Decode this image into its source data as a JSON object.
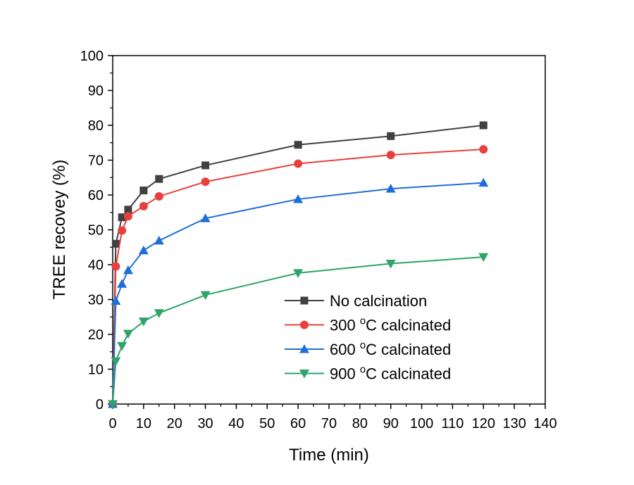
{
  "chart_data": {
    "type": "line",
    "title": "",
    "xlabel": "Time (min)",
    "ylabel": "TREE recovey (%)",
    "xlim": [
      0,
      140
    ],
    "ylim": [
      0,
      100
    ],
    "xticks": [
      0,
      10,
      20,
      30,
      40,
      50,
      60,
      70,
      80,
      90,
      100,
      110,
      120,
      130,
      140
    ],
    "yticks": [
      0,
      10,
      20,
      30,
      40,
      50,
      60,
      70,
      80,
      90,
      100
    ],
    "grid": false,
    "legend_position": "bottom-right",
    "x": [
      0,
      1,
      3,
      5,
      10,
      15,
      30,
      60,
      90,
      120
    ],
    "series": [
      {
        "name": "No calcination",
        "marker": "square",
        "color": "#404040",
        "values": [
          0,
          46,
          53.6,
          55.8,
          61.3,
          64.6,
          68.5,
          74.4,
          76.9,
          80
        ]
      },
      {
        "name": "300 °C calcinated",
        "legend_prefix": "300 ",
        "legend_superscript": "o",
        "legend_suffix": "C calcinated",
        "marker": "circle",
        "color": "#e8403c",
        "values": [
          0,
          39.5,
          49.8,
          53.9,
          56.8,
          59.6,
          63.8,
          69,
          71.5,
          73.1
        ]
      },
      {
        "name": "600 °C calcinated",
        "legend_prefix": "600 ",
        "legend_superscript": "o",
        "legend_suffix": "C calcinated",
        "marker": "triangle-up",
        "color": "#1f6fd6",
        "values": [
          0,
          29.6,
          34.5,
          38.4,
          44.1,
          46.9,
          53.3,
          58.8,
          61.8,
          63.5
        ]
      },
      {
        "name": "900 °C calcinated",
        "legend_prefix": "900 ",
        "legend_superscript": "o",
        "legend_suffix": "C calcinated",
        "marker": "triangle-down",
        "color": "#2ea36a",
        "values": [
          0,
          12.3,
          16.7,
          20.2,
          23.7,
          26.1,
          31.3,
          37.6,
          40.3,
          42.2
        ]
      }
    ]
  }
}
